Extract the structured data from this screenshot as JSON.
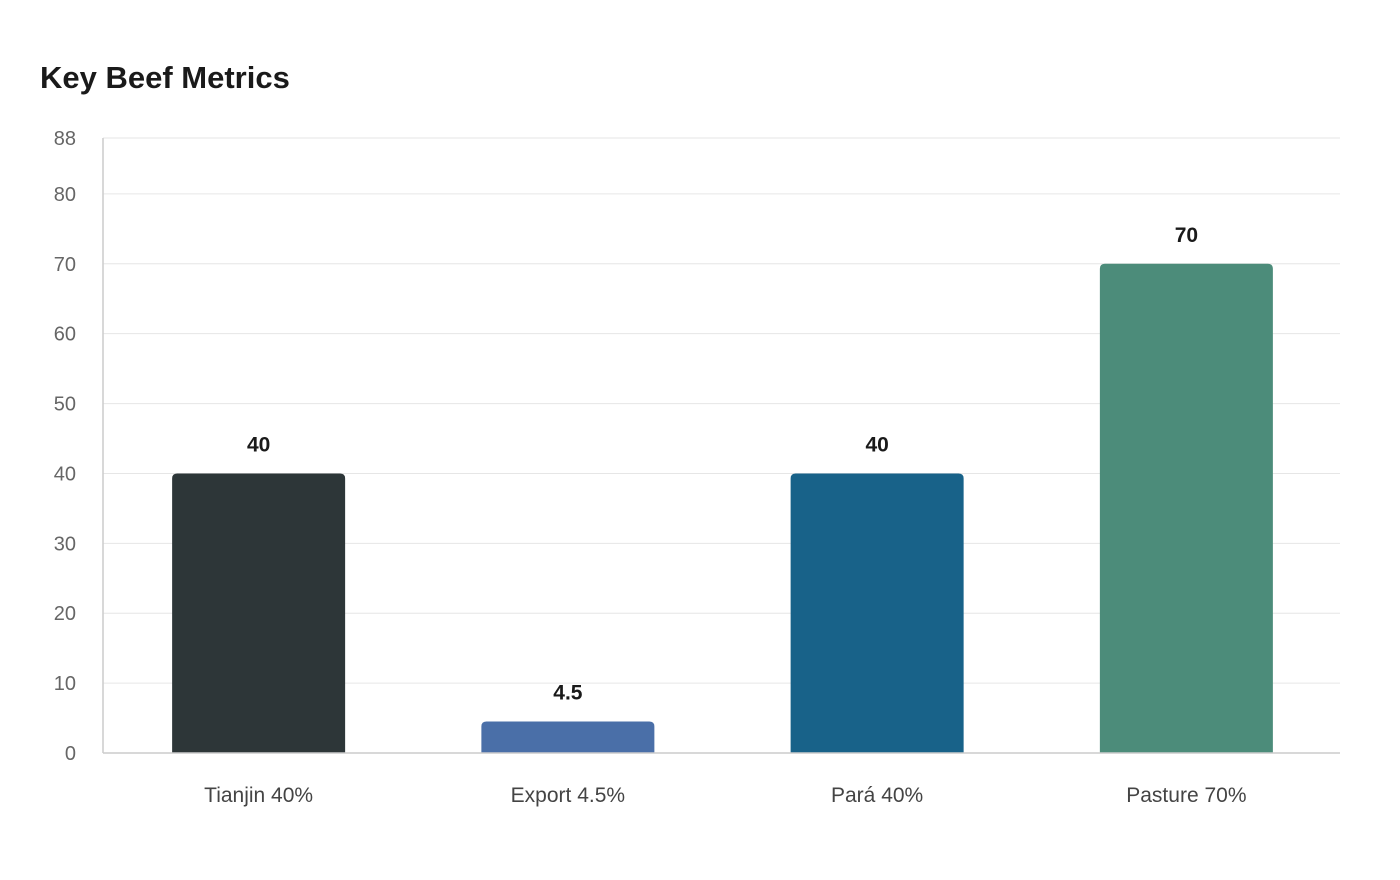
{
  "chart_data": {
    "type": "bar",
    "title": "Key Beef Metrics",
    "xlabel": "",
    "ylabel": "",
    "categories": [
      "Tianjin 40%",
      "Export 4.5%",
      "Pará 40%",
      "Pasture 70%"
    ],
    "values": [
      40,
      4.5,
      40,
      70
    ],
    "data_labels": [
      "40",
      "4.5",
      "40",
      "70"
    ],
    "colors": [
      "#2d3638",
      "#4a6fa8",
      "#186289",
      "#4c8c7a"
    ],
    "ylim": [
      0,
      88
    ],
    "yticks": [
      0,
      10,
      20,
      30,
      40,
      50,
      60,
      70,
      80,
      88
    ],
    "grid": true,
    "legend": "none"
  }
}
